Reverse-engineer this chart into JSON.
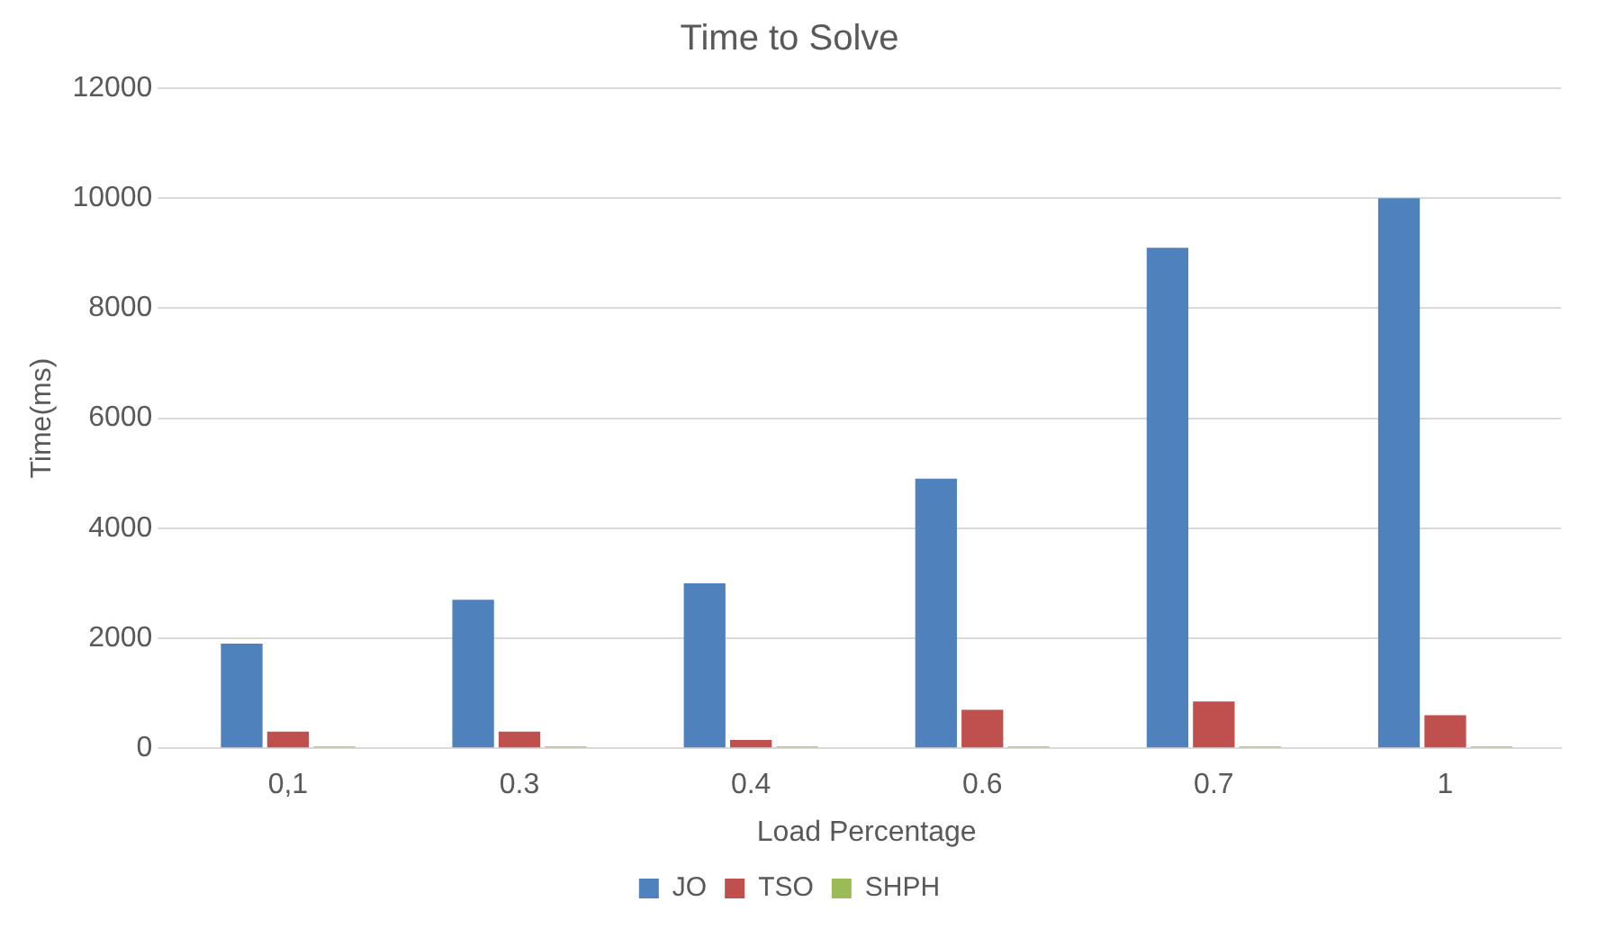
{
  "chart_data": {
    "type": "bar",
    "title": "Time to Solve",
    "xlabel": "Load Percentage",
    "ylabel": "Time(ms)",
    "categories": [
      "0,1",
      "0.3",
      "0.4",
      "0.6",
      "0.7",
      "1"
    ],
    "series": [
      {
        "name": "JO",
        "color": "#4f81bd",
        "values": [
          1900,
          2700,
          3000,
          4900,
          9100,
          10000
        ]
      },
      {
        "name": "TSO",
        "color": "#c0504d",
        "values": [
          300,
          300,
          150,
          700,
          850,
          600
        ]
      },
      {
        "name": "SHPH",
        "color": "#9bbb59",
        "values": [
          30,
          30,
          30,
          30,
          30,
          30
        ]
      }
    ],
    "ylim": [
      0,
      12000
    ],
    "yticks": [
      0,
      2000,
      4000,
      6000,
      8000,
      10000,
      12000
    ],
    "grid": "y",
    "legend": "bottom"
  }
}
